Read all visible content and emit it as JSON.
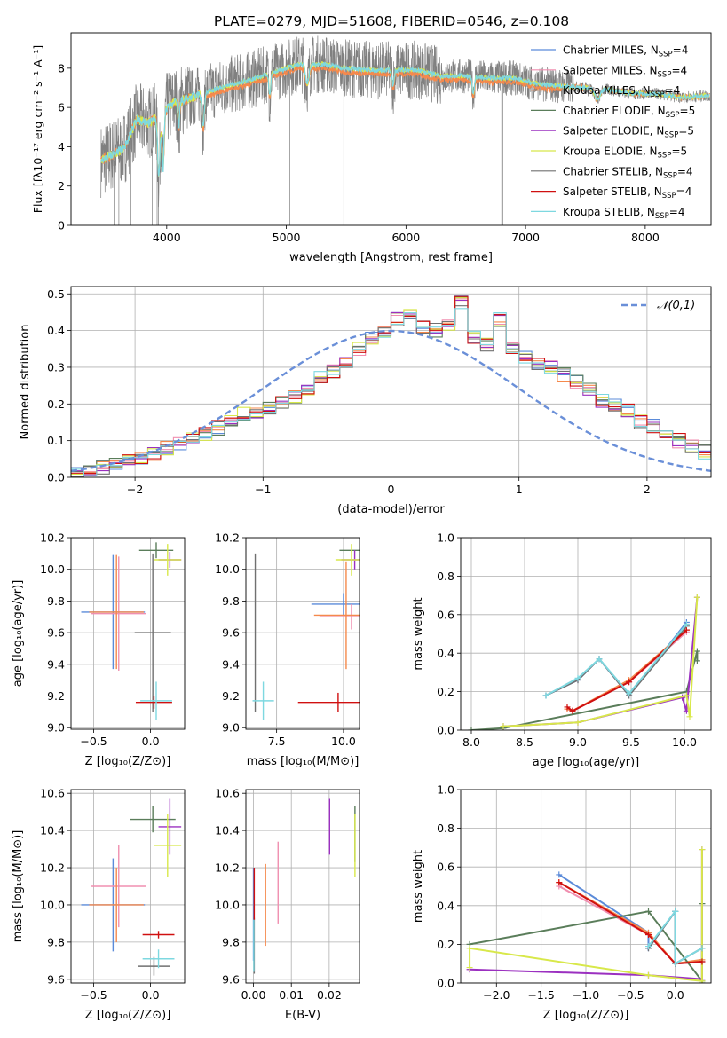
{
  "figure_title": "PLATE=0279, MJD=51608, FIBERID=0546, z=0.108",
  "colors": {
    "chabrier_miles": "#5b8bd9",
    "salpeter_miles": "#f08fb0",
    "kroupa_miles": "#f5894c",
    "chabrier_elodie": "#5a7d5a",
    "salpeter_elodie": "#9b30c0",
    "kroupa_elodie": "#d8e84a",
    "chabrier_stelib": "#707070",
    "salpeter_stelib": "#d01010",
    "kroupa_stelib": "#7ed8e0",
    "gaussian": "#6a8fd8",
    "observed": "#808080"
  },
  "chart_data": [
    {
      "id": "spectrum",
      "type": "line",
      "xlabel": "wavelength [Angstrom, rest frame]",
      "ylabel": "Flux [fλ10⁻¹⁷ erg cm⁻² s⁻¹ A⁻¹]",
      "xlim": [
        3200,
        8550
      ],
      "ylim": [
        0,
        9.8
      ],
      "xticks": [
        4000,
        5000,
        6000,
        7000,
        8000
      ],
      "yticks": [
        0,
        2,
        4,
        6,
        8
      ],
      "legend_position": "top-right",
      "legend": [
        {
          "key": "chabrier_miles",
          "label": "Chabrier MILES, N",
          "sub": "SSP",
          "tail": "=4"
        },
        {
          "key": "salpeter_miles",
          "label": "Salpeter MILES, N",
          "sub": "SSP",
          "tail": "=4"
        },
        {
          "key": "kroupa_miles",
          "label": "Kroupa MILES, N",
          "sub": "SSP",
          "tail": "=4"
        },
        {
          "key": "chabrier_elodie",
          "label": "Chabrier ELODIE, N",
          "sub": "SSP",
          "tail": "=5"
        },
        {
          "key": "salpeter_elodie",
          "label": "Salpeter ELODIE, N",
          "sub": "SSP",
          "tail": "=5"
        },
        {
          "key": "kroupa_elodie",
          "label": "Kroupa ELODIE, N",
          "sub": "SSP",
          "tail": "=5"
        },
        {
          "key": "chabrier_stelib",
          "label": "Chabrier STELIB, N",
          "sub": "SSP",
          "tail": "=4"
        },
        {
          "key": "salpeter_stelib",
          "label": "Salpeter STELIB, N",
          "sub": "SSP",
          "tail": "=4"
        },
        {
          "key": "kroupa_stelib",
          "label": "Kroupa STELIB, N",
          "sub": "SSP",
          "tail": "=4"
        }
      ],
      "continuum": {
        "x": [
          3450,
          3550,
          3650,
          3750,
          3850,
          3950,
          4050,
          4150,
          4300,
          4500,
          4700,
          4900,
          5100,
          5300,
          5500,
          5700,
          5900,
          6100,
          6300,
          6500,
          6700,
          6900,
          7100,
          7300,
          7500,
          7700,
          7900,
          8100,
          8300,
          8500
        ],
        "y": [
          3.3,
          3.6,
          4.0,
          5.4,
          5.2,
          5.6,
          6.2,
          6.4,
          6.7,
          7.1,
          7.4,
          7.8,
          8.2,
          8.2,
          8.0,
          7.9,
          7.9,
          7.9,
          7.6,
          7.6,
          7.5,
          7.5,
          7.2,
          7.1,
          7.0,
          6.9,
          6.7,
          6.7,
          6.5,
          6.6
        ]
      },
      "features": [
        {
          "x": 3934,
          "depth": 0.55,
          "width": 14
        },
        {
          "x": 3969,
          "depth": 0.5,
          "width": 12
        },
        {
          "x": 4101,
          "depth": 0.2,
          "width": 10
        },
        {
          "x": 4304,
          "depth": 0.25,
          "width": 14
        },
        {
          "x": 4861,
          "depth": 0.15,
          "width": 10
        },
        {
          "x": 5175,
          "depth": 0.12,
          "width": 20
        },
        {
          "x": 5893,
          "depth": 0.1,
          "width": 12
        },
        {
          "x": 6563,
          "depth": 0.12,
          "width": 12
        },
        {
          "x": 7600,
          "depth": 0.08,
          "width": 30
        }
      ],
      "observed_spikes": [
        3560,
        3600,
        3700,
        3880,
        3920,
        3930,
        5030,
        5480,
        6800,
        6810
      ]
    },
    {
      "id": "residuals",
      "type": "area",
      "xlabel": "(data-model)/error",
      "ylabel": "Normed distribution",
      "xlim": [
        -2.5,
        2.5
      ],
      "ylim": [
        0,
        0.52
      ],
      "xticks": [
        -2,
        -1,
        0,
        1,
        2
      ],
      "yticks": [
        0.0,
        0.1,
        0.2,
        0.3,
        0.4,
        0.5
      ],
      "gaussian_label": "𝒩(0,1)",
      "legend_position": "top-right",
      "bin_width": 0.1,
      "bin_start": -2.5,
      "base_values": [
        0.015,
        0.022,
        0.028,
        0.035,
        0.045,
        0.055,
        0.065,
        0.08,
        0.095,
        0.11,
        0.12,
        0.135,
        0.15,
        0.175,
        0.18,
        0.19,
        0.2,
        0.22,
        0.24,
        0.27,
        0.29,
        0.31,
        0.35,
        0.38,
        0.4,
        0.43,
        0.44,
        0.41,
        0.4,
        0.41,
        0.48,
        0.38,
        0.36,
        0.43,
        0.35,
        0.33,
        0.31,
        0.3,
        0.28,
        0.26,
        0.24,
        0.21,
        0.2,
        0.18,
        0.15,
        0.14,
        0.12,
        0.1,
        0.085,
        0.07,
        0.055,
        0.05,
        0.045,
        0.04,
        0.035,
        0.03,
        0.025,
        0.02,
        0.018,
        0.015
      ]
    },
    {
      "id": "age_vs_Z",
      "type": "scatter",
      "xlabel": "Z [log₁₀(Z/Z⊙)]",
      "ylabel": "age  [log₁₀(age/yr)]",
      "xlim": [
        -0.7,
        0.3
      ],
      "ylim": [
        8.99,
        10.2
      ],
      "xticks": [
        -0.5,
        0.0
      ],
      "yticks": [
        9.0,
        9.2,
        9.4,
        9.6,
        9.8,
        10.0,
        10.2
      ],
      "points": [
        {
          "key": "chabrier_miles",
          "x": -0.33,
          "y": 9.73,
          "xerr": 0.28,
          "yerr": 0.36
        },
        {
          "key": "salpeter_miles",
          "x": -0.28,
          "y": 9.72,
          "xerr": 0.24,
          "yerr": 0.36
        },
        {
          "key": "kroupa_miles",
          "x": -0.3,
          "y": 9.73,
          "xerr": 0.24,
          "yerr": 0.36
        },
        {
          "key": "chabrier_elodie",
          "x": 0.05,
          "y": 10.12,
          "xerr": 0.15,
          "yerr": 0.05
        },
        {
          "key": "salpeter_elodie",
          "x": 0.17,
          "y": 10.06,
          "xerr": 0.1,
          "yerr": 0.05
        },
        {
          "key": "kroupa_elodie",
          "x": 0.15,
          "y": 10.06,
          "xerr": 0.12,
          "yerr": 0.1
        },
        {
          "key": "chabrier_stelib",
          "x": 0.02,
          "y": 9.6,
          "xerr": 0.16,
          "yerr": 0.5
        },
        {
          "key": "salpeter_stelib",
          "x": 0.03,
          "y": 9.16,
          "xerr": 0.16,
          "yerr": 0.04
        },
        {
          "key": "kroupa_stelib",
          "x": 0.05,
          "y": 9.17,
          "xerr": 0.14,
          "yerr": 0.12
        }
      ]
    },
    {
      "id": "age_vs_mass",
      "type": "scatter",
      "xlabel": "mass [log₁₀(M/M⊙)]",
      "ylabel": "",
      "xlim": [
        6.35,
        10.6
      ],
      "ylim": [
        8.99,
        10.2
      ],
      "xticks": [
        7.5,
        10.0
      ],
      "yticks": [
        9.0,
        9.2,
        9.4,
        9.6,
        9.8,
        10.0,
        10.2
      ],
      "points": [
        {
          "key": "chabrier_miles",
          "x": 10.0,
          "y": 9.78,
          "xerr": 1.2,
          "yerr": 0.07
        },
        {
          "key": "salpeter_miles",
          "x": 10.3,
          "y": 9.7,
          "xerr": 1.2,
          "yerr": 0.08
        },
        {
          "key": "kroupa_miles",
          "x": 10.1,
          "y": 9.71,
          "xerr": 1.2,
          "yerr": 0.34
        },
        {
          "key": "chabrier_elodie",
          "x": 10.45,
          "y": 10.12,
          "xerr": 0.6,
          "yerr": 0.0
        },
        {
          "key": "salpeter_elodie",
          "x": 10.42,
          "y": 10.06,
          "xerr": 0.5,
          "yerr": 0.06
        },
        {
          "key": "kroupa_elodie",
          "x": 10.3,
          "y": 10.06,
          "xerr": 0.6,
          "yerr": 0.1
        },
        {
          "key": "chabrier_stelib",
          "x": 6.7,
          "y": 9.6,
          "xerr": 0.0,
          "yerr": 0.5
        },
        {
          "key": "salpeter_stelib",
          "x": 9.8,
          "y": 9.16,
          "xerr": 1.5,
          "yerr": 0.06
        },
        {
          "key": "kroupa_stelib",
          "x": 7.0,
          "y": 9.17,
          "xerr": 0.4,
          "yerr": 0.12
        }
      ]
    },
    {
      "id": "mass_weight_vs_age",
      "type": "line",
      "xlabel": "age  [log₁₀(age/yr)]",
      "ylabel": "mass weight",
      "xlim": [
        7.9,
        10.25
      ],
      "ylim": [
        0.0,
        1.0
      ],
      "xticks": [
        8.0,
        8.5,
        9.0,
        9.5,
        10.0
      ],
      "yticks": [
        0.0,
        0.2,
        0.4,
        0.6,
        0.8,
        1.0
      ],
      "series": [
        {
          "key": "chabrier_miles",
          "x": [
            8.7,
            9.0,
            9.2,
            9.48,
            10.02
          ],
          "y": [
            0.18,
            0.26,
            0.37,
            0.18,
            0.56
          ]
        },
        {
          "key": "salpeter_miles",
          "x": [
            8.9,
            8.95,
            9.48,
            10.02
          ],
          "y": [
            0.11,
            0.1,
            0.25,
            0.51
          ]
        },
        {
          "key": "kroupa_miles",
          "x": [
            8.9,
            8.95,
            9.48,
            10.02
          ],
          "y": [
            0.11,
            0.1,
            0.26,
            0.52
          ]
        },
        {
          "key": "chabrier_elodie",
          "x": [
            8.0,
            8.3,
            10.02,
            10.12,
            10.12
          ],
          "y": [
            0.0,
            0.01,
            0.2,
            0.41,
            0.36
          ]
        },
        {
          "key": "salpeter_elodie",
          "x": [
            8.3,
            9.0,
            9.98,
            10.02,
            10.12
          ],
          "y": [
            0.02,
            0.04,
            0.17,
            0.1,
            0.69
          ]
        },
        {
          "key": "kroupa_elodie",
          "x": [
            8.3,
            9.0,
            10.02,
            10.05,
            10.12
          ],
          "y": [
            0.02,
            0.04,
            0.18,
            0.07,
            0.69
          ]
        },
        {
          "key": "chabrier_stelib",
          "x": [
            8.7,
            9.0,
            9.2,
            9.48,
            10.02
          ],
          "y": [
            0.18,
            0.26,
            0.37,
            0.18,
            0.54
          ]
        },
        {
          "key": "salpeter_stelib",
          "x": [
            8.9,
            8.95,
            9.48,
            10.02
          ],
          "y": [
            0.12,
            0.1,
            0.25,
            0.52
          ]
        },
        {
          "key": "kroupa_stelib",
          "x": [
            8.7,
            9.0,
            9.2,
            9.48,
            10.02
          ],
          "y": [
            0.18,
            0.27,
            0.37,
            0.19,
            0.55
          ]
        }
      ]
    },
    {
      "id": "mass_vs_Z",
      "type": "scatter",
      "xlabel": "Z [log₁₀(Z/Z⊙)]",
      "ylabel": "mass [log₁₀(M/M⊙)]",
      "xlim": [
        -0.7,
        0.3
      ],
      "ylim": [
        9.58,
        10.62
      ],
      "xticks": [
        -0.5,
        0.0
      ],
      "yticks": [
        9.6,
        9.8,
        10.0,
        10.2,
        10.4,
        10.6
      ],
      "points": [
        {
          "key": "chabrier_miles",
          "x": -0.33,
          "y": 10.0,
          "xerr": 0.28,
          "yerr": 0.25
        },
        {
          "key": "salpeter_miles",
          "x": -0.28,
          "y": 10.1,
          "xerr": 0.24,
          "yerr": 0.22
        },
        {
          "key": "kroupa_miles",
          "x": -0.3,
          "y": 10.0,
          "xerr": 0.24,
          "yerr": 0.2
        },
        {
          "key": "chabrier_elodie",
          "x": 0.02,
          "y": 10.46,
          "xerr": 0.2,
          "yerr": 0.07
        },
        {
          "key": "salpeter_elodie",
          "x": 0.17,
          "y": 10.42,
          "xerr": 0.1,
          "yerr": 0.15
        },
        {
          "key": "kroupa_elodie",
          "x": 0.15,
          "y": 10.32,
          "xerr": 0.12,
          "yerr": 0.17
        },
        {
          "key": "chabrier_stelib",
          "x": 0.03,
          "y": 9.67,
          "xerr": 0.14,
          "yerr": 0.05
        },
        {
          "key": "salpeter_stelib",
          "x": 0.07,
          "y": 9.84,
          "xerr": 0.14,
          "yerr": 0.02
        },
        {
          "key": "kroupa_stelib",
          "x": 0.07,
          "y": 9.71,
          "xerr": 0.14,
          "yerr": 0.05
        }
      ]
    },
    {
      "id": "mass_vs_ebv",
      "type": "scatter",
      "xlabel": "E(B-V)",
      "ylabel": "",
      "xlim": [
        -0.002,
        0.028
      ],
      "ylim": [
        9.58,
        10.62
      ],
      "xticks": [
        0.0,
        0.01,
        0.02
      ],
      "xtick_labels": [
        "0.00",
        "0.01",
        "0.02"
      ],
      "yticks": [
        9.6,
        9.8,
        10.0,
        10.2,
        10.4,
        10.6
      ],
      "points": [
        {
          "key": "chabrier_miles",
          "x": 0.0,
          "y": 9.95,
          "xerr": 0,
          "yerr": 0.25
        },
        {
          "key": "salpeter_miles",
          "x": 0.0065,
          "y": 10.12,
          "xerr": 0,
          "yerr": 0.22
        },
        {
          "key": "kroupa_miles",
          "x": 0.0032,
          "y": 10.0,
          "xerr": 0,
          "yerr": 0.22
        },
        {
          "key": "chabrier_elodie",
          "x": 0.0268,
          "y": 10.38,
          "xerr": 0,
          "yerr": 0.15
        },
        {
          "key": "salpeter_elodie",
          "x": 0.0201,
          "y": 10.42,
          "xerr": 0,
          "yerr": 0.15
        },
        {
          "key": "kroupa_elodie",
          "x": 0.0268,
          "y": 10.32,
          "xerr": 0,
          "yerr": 0.17
        },
        {
          "key": "chabrier_stelib",
          "x": 0.0002,
          "y": 9.78,
          "xerr": 0,
          "yerr": 0.15
        },
        {
          "key": "salpeter_stelib",
          "x": 0.0002,
          "y": 10.06,
          "xerr": 0,
          "yerr": 0.14
        },
        {
          "key": "kroupa_stelib",
          "x": 0.0001,
          "y": 9.78,
          "xerr": 0,
          "yerr": 0.14
        }
      ]
    },
    {
      "id": "mass_weight_vs_Z",
      "type": "line",
      "xlabel": "Z [log₁₀(Z/Z⊙)]",
      "ylabel": "mass weight",
      "xlim": [
        -2.4,
        0.4
      ],
      "ylim": [
        0.0,
        1.0
      ],
      "xticks": [
        -2.0,
        -1.5,
        -1.0,
        -0.5,
        0.0
      ],
      "yticks": [
        0.0,
        0.2,
        0.4,
        0.6,
        0.8,
        1.0
      ],
      "series": [
        {
          "key": "chabrier_miles",
          "x": [
            -1.3,
            -0.3,
            -0.3,
            0.0,
            0.0,
            0.3,
            0.3
          ],
          "y": [
            0.56,
            0.26,
            0.18,
            0.37,
            0.1,
            0.11,
            0.18
          ]
        },
        {
          "key": "salpeter_miles",
          "x": [
            -1.3,
            -0.3,
            0.0,
            0.3
          ],
          "y": [
            0.5,
            0.25,
            0.1,
            0.11
          ]
        },
        {
          "key": "kroupa_miles",
          "x": [
            -1.3,
            -0.3,
            0.0,
            0.3
          ],
          "y": [
            0.52,
            0.26,
            0.1,
            0.12
          ]
        },
        {
          "key": "chabrier_elodie",
          "x": [
            -2.3,
            -0.3,
            0.3,
            0.3,
            0.3
          ],
          "y": [
            0.2,
            0.37,
            0.01,
            0.41,
            0.0
          ]
        },
        {
          "key": "salpeter_elodie",
          "x": [
            -2.3,
            -0.3,
            0.3,
            0.3
          ],
          "y": [
            0.07,
            0.04,
            0.02,
            0.69
          ]
        },
        {
          "key": "kroupa_elodie",
          "x": [
            -2.3,
            -2.3,
            -0.3,
            0.3,
            0.3
          ],
          "y": [
            0.08,
            0.18,
            0.04,
            0.01,
            0.69
          ]
        },
        {
          "key": "chabrier_stelib",
          "x": [
            -0.3,
            0.0,
            0.0,
            0.3
          ],
          "y": [
            0.18,
            0.37,
            0.1,
            0.18
          ]
        },
        {
          "key": "salpeter_stelib",
          "x": [
            -1.3,
            -0.3,
            0.0,
            0.3
          ],
          "y": [
            0.52,
            0.25,
            0.1,
            0.11
          ]
        },
        {
          "key": "kroupa_stelib",
          "x": [
            -0.3,
            0.0,
            0.0,
            0.3
          ],
          "y": [
            0.19,
            0.37,
            0.1,
            0.18
          ]
        }
      ]
    }
  ]
}
